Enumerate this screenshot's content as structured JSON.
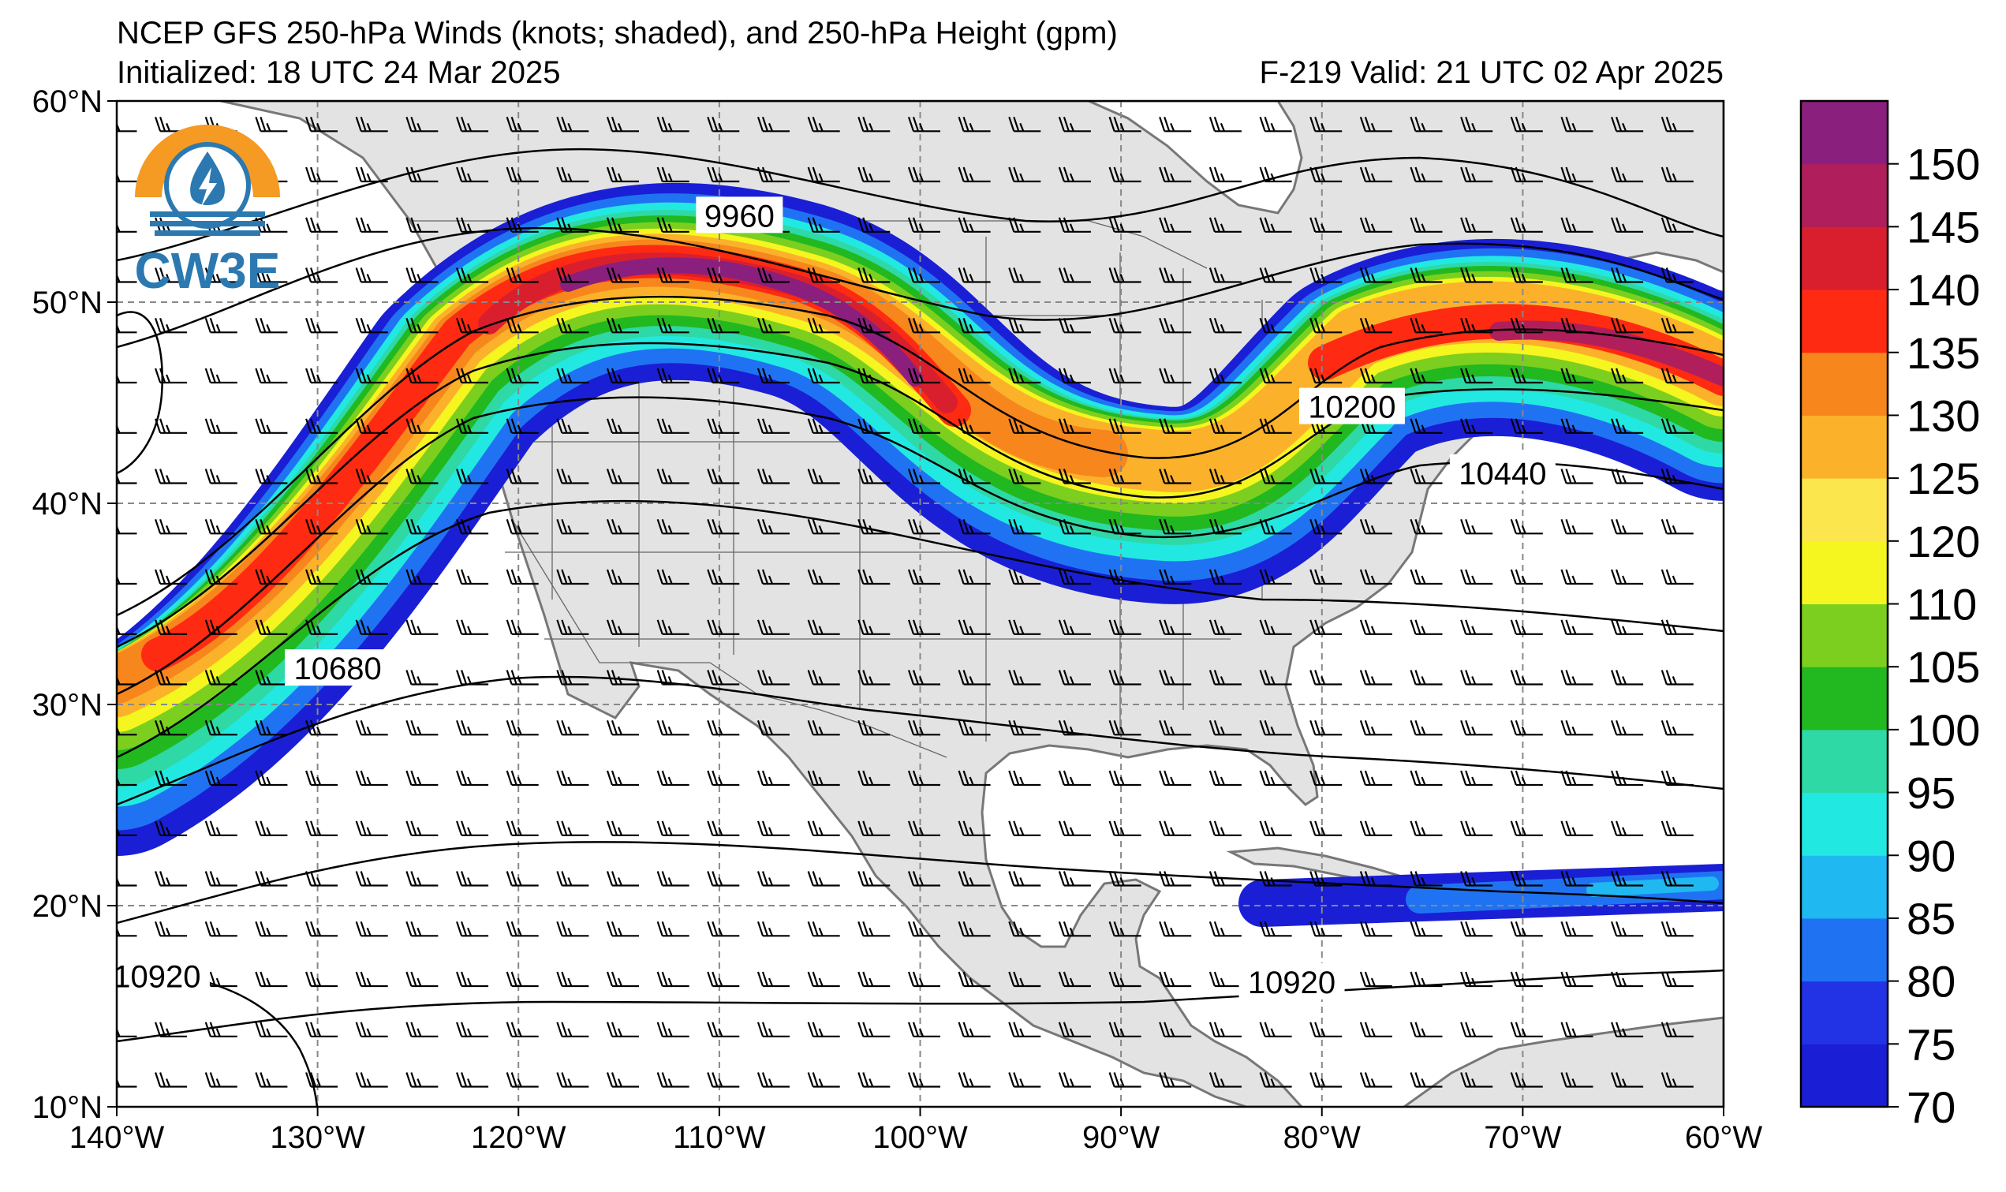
{
  "title": {
    "line1": "NCEP GFS 250-hPa Winds (knots; shaded), and 250-hPa Height (gpm)",
    "init": "Initialized: 18 UTC 24 Mar 2025",
    "valid": "F-219  Valid: 21 UTC 02 Apr 2025"
  },
  "logo": {
    "text": "CW3E"
  },
  "map": {
    "lon_range": [
      -140,
      -60
    ],
    "lat_range": [
      10,
      60
    ],
    "x_ticks": [
      "140°W",
      "130°W",
      "120°W",
      "110°W",
      "100°W",
      "90°W",
      "80°W",
      "70°W",
      "60°W"
    ],
    "y_ticks": [
      "60°N",
      "50°N",
      "40°N",
      "30°N",
      "20°N",
      "10°N"
    ],
    "gridlines": true,
    "land_color": "#e3e3e3",
    "coast_color": "#777777"
  },
  "height_labels": [
    {
      "text": "9960",
      "lon": -109.0,
      "lat": 54.3
    },
    {
      "text": "10200",
      "lon": -78.5,
      "lat": 44.8
    },
    {
      "text": "10440",
      "lon": -71.0,
      "lat": 41.5
    },
    {
      "text": "10680",
      "lon": -129.0,
      "lat": 31.8
    },
    {
      "text": "10920",
      "lon": -138.0,
      "lat": 16.5
    },
    {
      "text": "10920",
      "lon": -81.5,
      "lat": 16.2
    }
  ],
  "colorbar": {
    "ticks": [
      "150",
      "145",
      "140",
      "135",
      "130",
      "125",
      "120",
      "110",
      "105",
      "100",
      "95",
      "90",
      "85",
      "80",
      "75",
      "70"
    ],
    "colors": [
      "#1a1fd6",
      "#2233e6",
      "#1f73f2",
      "#1fb8f0",
      "#22e8e2",
      "#2ed9a6",
      "#22b81f",
      "#7ccf1f",
      "#f5f520",
      "#fce64d",
      "#fbb22a",
      "#f7861c",
      "#ff2a12",
      "#d91f2e",
      "#b01f5b",
      "#8b1f7d"
    ]
  }
}
